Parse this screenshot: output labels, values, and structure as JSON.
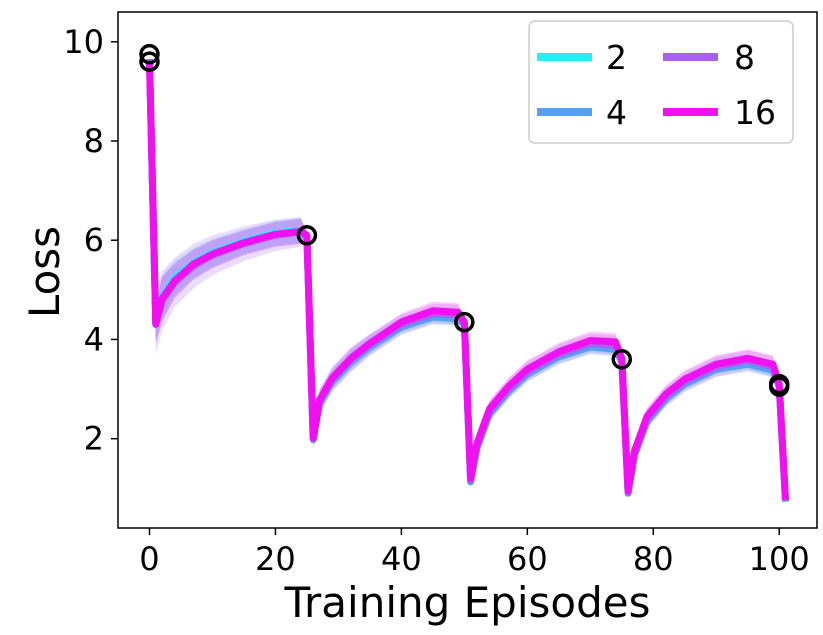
{
  "chart_data": {
    "type": "line",
    "title": "",
    "xlabel": "Training Episodes",
    "ylabel": "Loss",
    "xlim": [
      -5,
      106
    ],
    "ylim": [
      0.2,
      10.6
    ],
    "xticks": [
      0,
      20,
      40,
      60,
      80,
      100
    ],
    "yticks": [
      2,
      4,
      6,
      8,
      10
    ],
    "grid": false,
    "legend": {
      "placement": "top-right",
      "columns": 2
    },
    "task_boundary_markers": [
      {
        "x": 0,
        "y": 9.75
      },
      {
        "x": 0,
        "y": 9.6
      },
      {
        "x": 25,
        "y": 6.1
      },
      {
        "x": 50,
        "y": 4.35
      },
      {
        "x": 75,
        "y": 3.6
      },
      {
        "x": 100,
        "y": 3.1
      },
      {
        "x": 100,
        "y": 3.05
      }
    ],
    "series": [
      {
        "name": "2",
        "color": "#22f0f5",
        "x": [
          0,
          1,
          2,
          4,
          7,
          10,
          15,
          20,
          24,
          25,
          26,
          27,
          29,
          32,
          35,
          40,
          45,
          49,
          50,
          51,
          52,
          54,
          57,
          60,
          65,
          70,
          74,
          75,
          76,
          77,
          79,
          82,
          85,
          90,
          95,
          99,
          100,
          101
        ],
        "y": [
          9.6,
          4.35,
          4.85,
          5.25,
          5.55,
          5.75,
          5.98,
          6.15,
          6.2,
          6.05,
          2.0,
          2.75,
          3.2,
          3.6,
          3.9,
          4.3,
          4.5,
          4.45,
          4.3,
          1.15,
          1.85,
          2.55,
          3.0,
          3.35,
          3.7,
          3.9,
          3.85,
          3.55,
          0.92,
          1.7,
          2.4,
          2.85,
          3.15,
          3.45,
          3.55,
          3.4,
          3.05,
          0.75
        ],
        "band": [
          0.3,
          0.4,
          0.45,
          0.35,
          0.3,
          0.28,
          0.25,
          0.25,
          0.25,
          0.1,
          0.15,
          0.2,
          0.2,
          0.2,
          0.18,
          0.15,
          0.15,
          0.15,
          0.1,
          0.1,
          0.15,
          0.15,
          0.15,
          0.15,
          0.15,
          0.15,
          0.15,
          0.1,
          0.08,
          0.12,
          0.15,
          0.15,
          0.15,
          0.15,
          0.15,
          0.15,
          0.1,
          0.05
        ]
      },
      {
        "name": "4",
        "color": "#55a0f5",
        "x": [
          0,
          1,
          2,
          4,
          7,
          10,
          15,
          20,
          24,
          25,
          26,
          27,
          29,
          32,
          35,
          40,
          45,
          49,
          50,
          51,
          52,
          54,
          57,
          60,
          65,
          70,
          74,
          75,
          76,
          77,
          79,
          82,
          85,
          90,
          95,
          99,
          100,
          101
        ],
        "y": [
          9.62,
          4.33,
          4.8,
          5.2,
          5.5,
          5.72,
          5.95,
          6.12,
          6.18,
          6.07,
          1.98,
          2.7,
          3.15,
          3.55,
          3.85,
          4.25,
          4.45,
          4.42,
          4.3,
          1.13,
          1.8,
          2.5,
          2.95,
          3.3,
          3.65,
          3.85,
          3.8,
          3.55,
          0.9,
          1.65,
          2.35,
          2.8,
          3.1,
          3.4,
          3.5,
          3.38,
          3.05,
          0.73
        ],
        "band": [
          0.3,
          0.4,
          0.45,
          0.35,
          0.3,
          0.28,
          0.25,
          0.25,
          0.25,
          0.1,
          0.15,
          0.2,
          0.2,
          0.2,
          0.18,
          0.15,
          0.15,
          0.15,
          0.1,
          0.1,
          0.15,
          0.15,
          0.15,
          0.15,
          0.15,
          0.15,
          0.15,
          0.1,
          0.08,
          0.12,
          0.15,
          0.15,
          0.15,
          0.15,
          0.15,
          0.15,
          0.1,
          0.05
        ]
      },
      {
        "name": "8",
        "color": "#a860f0",
        "x": [
          0,
          1,
          2,
          4,
          7,
          10,
          15,
          20,
          24,
          25,
          26,
          27,
          29,
          32,
          35,
          40,
          45,
          49,
          50,
          51,
          52,
          54,
          57,
          60,
          65,
          70,
          74,
          75,
          76,
          77,
          79,
          82,
          85,
          90,
          95,
          99,
          100,
          101
        ],
        "y": [
          9.65,
          4.3,
          4.78,
          5.15,
          5.48,
          5.7,
          5.93,
          6.1,
          6.17,
          6.08,
          2.0,
          2.75,
          3.2,
          3.6,
          3.9,
          4.3,
          4.52,
          4.5,
          4.33,
          1.17,
          1.85,
          2.55,
          3.0,
          3.35,
          3.7,
          3.92,
          3.88,
          3.6,
          0.92,
          1.7,
          2.4,
          2.85,
          3.15,
          3.45,
          3.58,
          3.45,
          3.08,
          0.75
        ],
        "band": [
          0.3,
          0.6,
          0.6,
          0.5,
          0.45,
          0.4,
          0.35,
          0.32,
          0.3,
          0.1,
          0.2,
          0.25,
          0.25,
          0.25,
          0.22,
          0.2,
          0.2,
          0.2,
          0.1,
          0.12,
          0.2,
          0.2,
          0.2,
          0.2,
          0.2,
          0.2,
          0.2,
          0.1,
          0.1,
          0.15,
          0.2,
          0.2,
          0.2,
          0.2,
          0.2,
          0.2,
          0.1,
          0.05
        ]
      },
      {
        "name": "16",
        "color": "#f010f0",
        "x": [
          0,
          1,
          2,
          4,
          7,
          10,
          15,
          20,
          24,
          25,
          26,
          27,
          29,
          32,
          35,
          40,
          45,
          49,
          50,
          51,
          52,
          54,
          57,
          60,
          65,
          70,
          74,
          75,
          76,
          77,
          79,
          82,
          85,
          90,
          95,
          99,
          100,
          101
        ],
        "y": [
          9.6,
          4.32,
          4.82,
          5.18,
          5.52,
          5.72,
          5.95,
          6.12,
          6.18,
          6.1,
          2.02,
          2.78,
          3.22,
          3.62,
          3.92,
          4.35,
          4.58,
          4.55,
          4.35,
          1.2,
          1.9,
          2.6,
          3.05,
          3.4,
          3.75,
          3.98,
          3.95,
          3.62,
          0.95,
          1.75,
          2.45,
          2.9,
          3.2,
          3.5,
          3.62,
          3.5,
          3.1,
          0.77
        ],
        "band": [
          0.3,
          0.4,
          0.45,
          0.35,
          0.3,
          0.28,
          0.25,
          0.25,
          0.25,
          0.1,
          0.15,
          0.2,
          0.2,
          0.2,
          0.18,
          0.18,
          0.18,
          0.18,
          0.1,
          0.1,
          0.18,
          0.18,
          0.18,
          0.18,
          0.18,
          0.18,
          0.18,
          0.1,
          0.08,
          0.12,
          0.18,
          0.18,
          0.18,
          0.18,
          0.18,
          0.18,
          0.1,
          0.05
        ]
      }
    ]
  }
}
